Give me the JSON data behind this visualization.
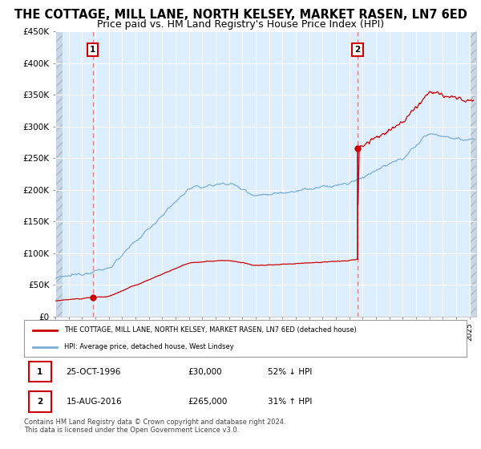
{
  "title": "THE COTTAGE, MILL LANE, NORTH KELSEY, MARKET RASEN, LN7 6ED",
  "subtitle": "Price paid vs. HM Land Registry's House Price Index (HPI)",
  "ylim": [
    0,
    450000
  ],
  "yticks": [
    0,
    50000,
    100000,
    150000,
    200000,
    250000,
    300000,
    350000,
    400000,
    450000
  ],
  "ytick_labels": [
    "£0",
    "£50K",
    "£100K",
    "£150K",
    "£200K",
    "£250K",
    "£300K",
    "£350K",
    "£400K",
    "£450K"
  ],
  "xlim_start": 1994.0,
  "xlim_end": 2025.5,
  "sale1_date": 1996.81,
  "sale1_price": 30000,
  "sale1_label": "1",
  "sale2_date": 2016.62,
  "sale2_price": 265000,
  "sale2_label": "2",
  "red_line_color": "#cc0000",
  "blue_line_color": "#7aaed6",
  "annotation_box_color": "#cc0000",
  "dashed_line_color": "#e88080",
  "chart_bg_color": "#ddeeff",
  "hatch_color": "#c8d8e8",
  "legend_entry1": "THE COTTAGE, MILL LANE, NORTH KELSEY, MARKET RASEN, LN7 6ED (detached house)",
  "legend_entry2": "HPI: Average price, detached house, West Lindsey",
  "table_row1": [
    "1",
    "25-OCT-1996",
    "£30,000",
    "52% ↓ HPI"
  ],
  "table_row2": [
    "2",
    "15-AUG-2016",
    "£265,000",
    "31% ↑ HPI"
  ],
  "footer": "Contains HM Land Registry data © Crown copyright and database right 2024.\nThis data is licensed under the Open Government Licence v3.0.",
  "title_fontsize": 10.5,
  "subtitle_fontsize": 9
}
